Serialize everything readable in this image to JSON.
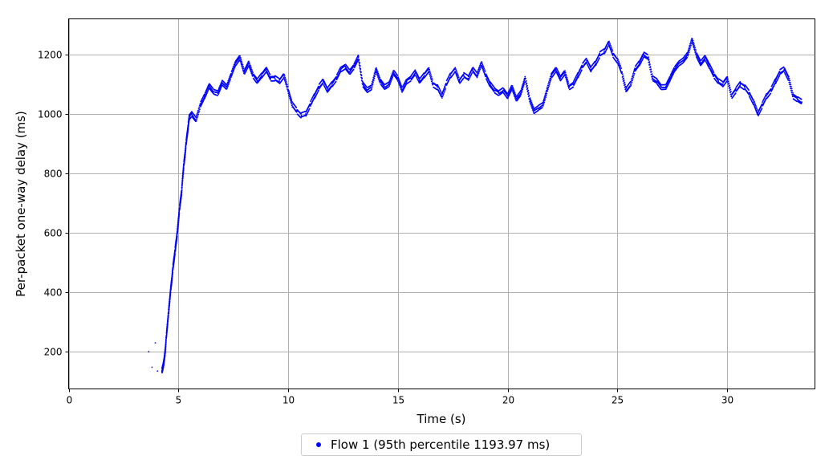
{
  "chart_data": {
    "type": "scatter",
    "xlabel": "Time (s)",
    "ylabel": "Per-packet one-way delay (ms)",
    "xlim": [
      0,
      34
    ],
    "ylim": [
      75,
      1320
    ],
    "xticks": [
      0,
      5,
      10,
      15,
      20,
      25,
      30
    ],
    "yticks": [
      200,
      400,
      600,
      800,
      1000,
      1200
    ],
    "grid": true,
    "legend_position": "bottom-center",
    "series": [
      {
        "name": "Flow 1 (95th percentile 1193.97 ms)",
        "color": "#0000ff",
        "points": [
          [
            3.65,
            200
          ],
          [
            3.8,
            148
          ],
          [
            3.95,
            230
          ],
          [
            4.05,
            135
          ],
          [
            4.25,
            135
          ],
          [
            4.3,
            150
          ],
          [
            4.35,
            170
          ],
          [
            4.4,
            200
          ],
          [
            4.45,
            250
          ],
          [
            4.5,
            290
          ],
          [
            4.55,
            330
          ],
          [
            4.6,
            370
          ],
          [
            4.65,
            410
          ],
          [
            4.7,
            440
          ],
          [
            4.75,
            480
          ],
          [
            4.8,
            510
          ],
          [
            4.85,
            540
          ],
          [
            4.9,
            570
          ],
          [
            4.95,
            600
          ],
          [
            5.0,
            640
          ],
          [
            5.05,
            680
          ],
          [
            5.1,
            710
          ],
          [
            5.15,
            740
          ],
          [
            5.2,
            790
          ],
          [
            5.25,
            830
          ],
          [
            5.3,
            860
          ],
          [
            5.35,
            900
          ],
          [
            5.4,
            930
          ],
          [
            5.45,
            960
          ],
          [
            5.5,
            990
          ],
          [
            5.6,
            1000
          ],
          [
            5.8,
            980
          ],
          [
            6.0,
            1030
          ],
          [
            6.2,
            1060
          ],
          [
            6.4,
            1095
          ],
          [
            6.6,
            1075
          ],
          [
            6.8,
            1070
          ],
          [
            7.0,
            1105
          ],
          [
            7.2,
            1090
          ],
          [
            7.4,
            1130
          ],
          [
            7.6,
            1170
          ],
          [
            7.8,
            1190
          ],
          [
            8.0,
            1140
          ],
          [
            8.2,
            1170
          ],
          [
            8.4,
            1130
          ],
          [
            8.6,
            1110
          ],
          [
            8.8,
            1130
          ],
          [
            9.0,
            1150
          ],
          [
            9.2,
            1120
          ],
          [
            9.4,
            1120
          ],
          [
            9.6,
            1110
          ],
          [
            9.8,
            1130
          ],
          [
            10.0,
            1080
          ],
          [
            10.2,
            1030
          ],
          [
            10.4,
            1010
          ],
          [
            10.6,
            995
          ],
          [
            10.8,
            1000
          ],
          [
            11.0,
            1030
          ],
          [
            11.2,
            1060
          ],
          [
            11.4,
            1090
          ],
          [
            11.6,
            1110
          ],
          [
            11.8,
            1080
          ],
          [
            12.0,
            1100
          ],
          [
            12.2,
            1120
          ],
          [
            12.4,
            1150
          ],
          [
            12.6,
            1160
          ],
          [
            12.8,
            1140
          ],
          [
            13.0,
            1160
          ],
          [
            13.2,
            1190
          ],
          [
            13.4,
            1100
          ],
          [
            13.6,
            1080
          ],
          [
            13.8,
            1090
          ],
          [
            14.0,
            1150
          ],
          [
            14.2,
            1110
          ],
          [
            14.4,
            1090
          ],
          [
            14.6,
            1100
          ],
          [
            14.8,
            1140
          ],
          [
            15.0,
            1120
          ],
          [
            15.2,
            1080
          ],
          [
            15.4,
            1110
          ],
          [
            15.6,
            1120
          ],
          [
            15.8,
            1140
          ],
          [
            16.0,
            1110
          ],
          [
            16.2,
            1130
          ],
          [
            16.4,
            1150
          ],
          [
            16.6,
            1100
          ],
          [
            16.8,
            1090
          ],
          [
            17.0,
            1060
          ],
          [
            17.2,
            1100
          ],
          [
            17.4,
            1130
          ],
          [
            17.6,
            1150
          ],
          [
            17.8,
            1110
          ],
          [
            18.0,
            1130
          ],
          [
            18.2,
            1120
          ],
          [
            18.4,
            1150
          ],
          [
            18.6,
            1130
          ],
          [
            18.8,
            1170
          ],
          [
            19.0,
            1130
          ],
          [
            19.2,
            1100
          ],
          [
            19.4,
            1080
          ],
          [
            19.6,
            1070
          ],
          [
            19.8,
            1080
          ],
          [
            20.0,
            1060
          ],
          [
            20.2,
            1090
          ],
          [
            20.4,
            1050
          ],
          [
            20.6,
            1070
          ],
          [
            20.8,
            1120
          ],
          [
            21.0,
            1050
          ],
          [
            21.2,
            1010
          ],
          [
            21.4,
            1020
          ],
          [
            21.6,
            1030
          ],
          [
            21.8,
            1080
          ],
          [
            22.0,
            1130
          ],
          [
            22.2,
            1150
          ],
          [
            22.4,
            1120
          ],
          [
            22.6,
            1140
          ],
          [
            22.8,
            1090
          ],
          [
            23.0,
            1100
          ],
          [
            23.2,
            1130
          ],
          [
            23.4,
            1160
          ],
          [
            23.6,
            1180
          ],
          [
            23.8,
            1150
          ],
          [
            24.0,
            1170
          ],
          [
            24.2,
            1200
          ],
          [
            24.4,
            1210
          ],
          [
            24.6,
            1240
          ],
          [
            24.8,
            1200
          ],
          [
            25.0,
            1180
          ],
          [
            25.2,
            1140
          ],
          [
            25.4,
            1080
          ],
          [
            25.6,
            1100
          ],
          [
            25.8,
            1150
          ],
          [
            26.0,
            1170
          ],
          [
            26.2,
            1200
          ],
          [
            26.4,
            1190
          ],
          [
            26.6,
            1120
          ],
          [
            26.8,
            1110
          ],
          [
            27.0,
            1090
          ],
          [
            27.2,
            1090
          ],
          [
            27.4,
            1120
          ],
          [
            27.6,
            1150
          ],
          [
            27.8,
            1170
          ],
          [
            28.0,
            1180
          ],
          [
            28.2,
            1200
          ],
          [
            28.4,
            1250
          ],
          [
            28.6,
            1200
          ],
          [
            28.8,
            1170
          ],
          [
            29.0,
            1190
          ],
          [
            29.2,
            1160
          ],
          [
            29.4,
            1130
          ],
          [
            29.6,
            1110
          ],
          [
            29.8,
            1100
          ],
          [
            30.0,
            1120
          ],
          [
            30.2,
            1060
          ],
          [
            30.4,
            1080
          ],
          [
            30.6,
            1100
          ],
          [
            30.8,
            1090
          ],
          [
            31.0,
            1070
          ],
          [
            31.2,
            1040
          ],
          [
            31.4,
            1000
          ],
          [
            31.6,
            1030
          ],
          [
            31.8,
            1060
          ],
          [
            32.0,
            1080
          ],
          [
            32.2,
            1110
          ],
          [
            32.4,
            1140
          ],
          [
            32.6,
            1150
          ],
          [
            32.8,
            1120
          ],
          [
            33.0,
            1060
          ],
          [
            33.2,
            1050
          ],
          [
            33.4,
            1040
          ]
        ]
      }
    ]
  }
}
